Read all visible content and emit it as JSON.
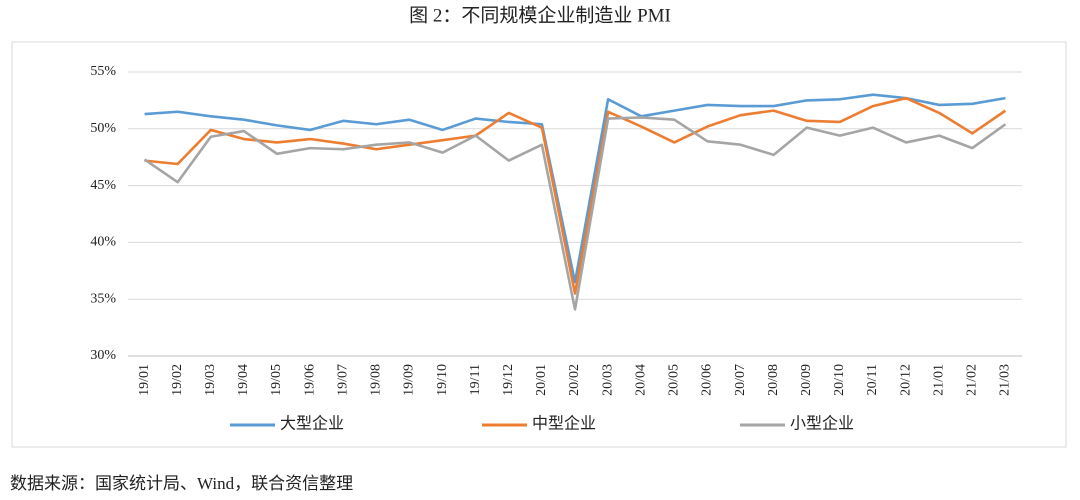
{
  "chart_data": {
    "type": "line",
    "title": "图 2：不同规模企业制造业 PMI",
    "source": "数据来源：国家统计局、Wind，联合资信整理",
    "categories": [
      "19/01",
      "19/02",
      "19/03",
      "19/04",
      "19/05",
      "19/06",
      "19/07",
      "19/08",
      "19/09",
      "19/10",
      "19/11",
      "19/12",
      "20/01",
      "20/02",
      "20/03",
      "20/04",
      "20/05",
      "20/06",
      "20/07",
      "20/08",
      "20/09",
      "20/10",
      "20/11",
      "20/12",
      "21/01",
      "21/02",
      "21/03"
    ],
    "series": [
      {
        "name": "大型企业",
        "color": "#5b9bd5",
        "values": [
          51.3,
          51.5,
          51.1,
          50.8,
          50.3,
          49.9,
          50.7,
          50.4,
          50.8,
          49.9,
          50.9,
          50.6,
          50.4,
          36.5,
          52.6,
          51.1,
          51.6,
          52.1,
          52.0,
          52.0,
          52.5,
          52.6,
          53.0,
          52.7,
          52.1,
          52.2,
          52.7
        ]
      },
      {
        "name": "中型企业",
        "color": "#ed7d31",
        "values": [
          47.2,
          46.9,
          49.9,
          49.1,
          48.8,
          49.1,
          48.7,
          48.2,
          48.6,
          49.0,
          49.4,
          51.4,
          50.1,
          35.5,
          51.5,
          50.2,
          48.8,
          50.2,
          51.2,
          51.6,
          50.7,
          50.6,
          52.0,
          52.7,
          51.4,
          49.6,
          51.6
        ]
      },
      {
        "name": "小型企业",
        "color": "#a5a5a5",
        "values": [
          47.3,
          45.3,
          49.3,
          49.8,
          47.8,
          48.3,
          48.2,
          48.6,
          48.8,
          47.9,
          49.4,
          47.2,
          48.6,
          34.1,
          50.9,
          51.0,
          50.8,
          48.9,
          48.6,
          47.7,
          50.1,
          49.4,
          50.1,
          48.8,
          49.4,
          48.3,
          50.4
        ]
      }
    ],
    "ylim": [
      30,
      55
    ],
    "yticks": [
      {
        "value": 30,
        "label": "30%"
      },
      {
        "value": 35,
        "label": "35%"
      },
      {
        "value": 40,
        "label": "40%"
      },
      {
        "value": 45,
        "label": "45%"
      },
      {
        "value": 50,
        "label": "50%"
      },
      {
        "value": 55,
        "label": "55%"
      }
    ],
    "grid": true
  }
}
